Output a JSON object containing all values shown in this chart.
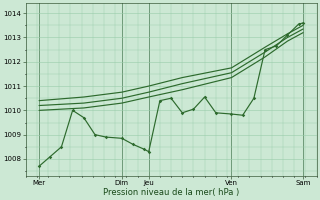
{
  "xlabel": "Pression niveau de la mer( hPa )",
  "bg_color": "#cce8d4",
  "plot_bg_color": "#cce8d4",
  "grid_color": "#99ccaa",
  "line_color": "#2d6a2d",
  "ylim": [
    1007.3,
    1014.4
  ],
  "xlim": [
    0.0,
    6.5
  ],
  "ytick_positions": [
    1008,
    1009,
    1010,
    1011,
    1012,
    1013,
    1014
  ],
  "ytick_labels": [
    "1008",
    "1009",
    "1010",
    "1011",
    "1012",
    "1013",
    "1014"
  ],
  "xtick_positions": [
    0.3,
    2.15,
    2.75,
    4.6,
    6.2
  ],
  "xtick_labels": [
    "Mer",
    "Dim",
    "Jeu",
    "Ven",
    "Sam"
  ],
  "vlines_dark": [
    0.3,
    2.15,
    2.75,
    4.6,
    6.2
  ],
  "line_jagged_x": [
    0.3,
    0.55,
    0.8,
    1.05,
    1.3,
    1.55,
    1.8,
    2.15,
    2.4,
    2.65,
    2.75,
    3.0,
    3.25,
    3.5,
    3.75,
    4.0,
    4.25,
    4.6,
    4.85,
    5.1,
    5.35,
    5.6,
    5.85,
    6.1,
    6.2
  ],
  "line_jagged_y": [
    1007.7,
    1008.1,
    1008.5,
    1010.0,
    1009.7,
    1009.0,
    1008.9,
    1008.85,
    1008.6,
    1008.4,
    1008.3,
    1010.4,
    1010.5,
    1009.9,
    1010.05,
    1010.55,
    1009.9,
    1009.85,
    1009.8,
    1010.5,
    1012.5,
    1012.65,
    1013.1,
    1013.55,
    1013.6
  ],
  "line_trend1_x": [
    0.3,
    1.3,
    2.15,
    2.75,
    3.5,
    4.6,
    5.35,
    5.85,
    6.2
  ],
  "line_trend1_y": [
    1010.0,
    1010.1,
    1010.3,
    1010.55,
    1010.85,
    1011.35,
    1012.2,
    1012.85,
    1013.2
  ],
  "line_trend2_x": [
    0.3,
    1.3,
    2.15,
    2.75,
    3.5,
    4.6,
    5.35,
    5.85,
    6.2
  ],
  "line_trend2_y": [
    1010.2,
    1010.3,
    1010.5,
    1010.75,
    1011.1,
    1011.55,
    1012.4,
    1013.0,
    1013.35
  ],
  "line_trend3_x": [
    0.3,
    1.3,
    2.15,
    2.75,
    3.5,
    4.6,
    5.35,
    5.85,
    6.2
  ],
  "line_trend3_y": [
    1010.4,
    1010.55,
    1010.75,
    1011.0,
    1011.35,
    1011.75,
    1012.6,
    1013.15,
    1013.5
  ]
}
